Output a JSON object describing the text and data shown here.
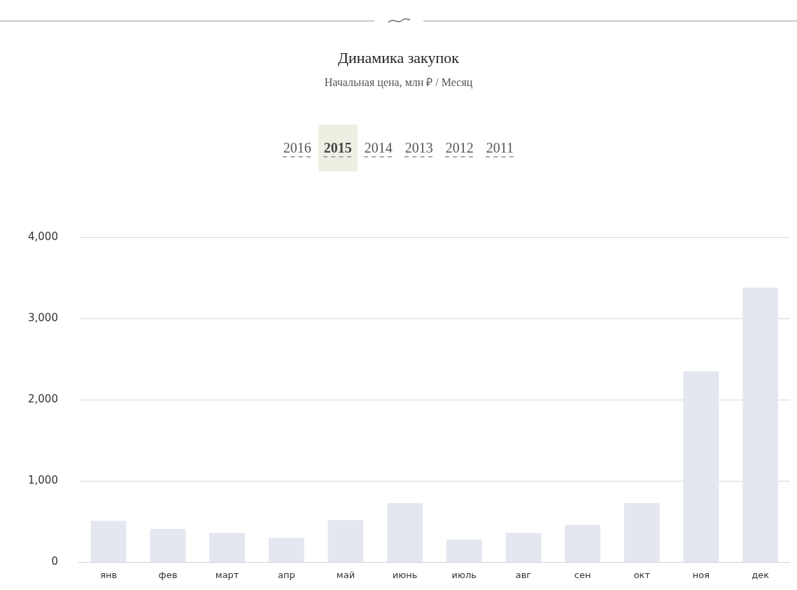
{
  "chart_data": {
    "type": "bar",
    "title": "Динамика закупок",
    "subtitle": "Начальная цена, млн ₽ / Месяц",
    "annotations": [
      "2016",
      "2015",
      "2014",
      "2013",
      "2012",
      "2011"
    ],
    "categories": [
      "янв",
      "фев",
      "март",
      "апр",
      "май",
      "июнь",
      "июль",
      "авг",
      "сен",
      "окт",
      "ноя",
      "дек"
    ],
    "values": [
      510,
      410,
      360,
      300,
      520,
      730,
      280,
      360,
      460,
      730,
      2350,
      3380
    ],
    "color": "#e4e7ef",
    "ylim": [
      0,
      4000
    ],
    "yticks": [
      0,
      {
        "value": 1000,
        "label": "1,000"
      },
      {
        "value": 2000,
        "label": "2,000"
      },
      {
        "value": 3000,
        "label": "3,000"
      },
      {
        "value": 4000,
        "label": "4,000"
      }
    ],
    "grid": "y",
    "legend": false
  }
}
